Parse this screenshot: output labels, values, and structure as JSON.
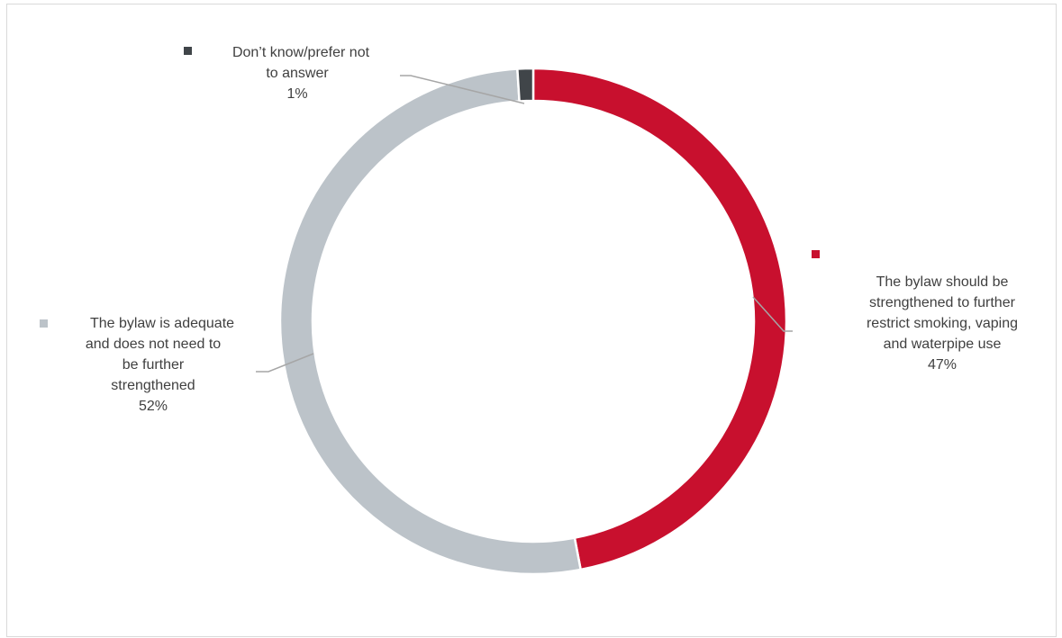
{
  "chart_data": {
    "type": "pie",
    "variant": "donut",
    "categories": [
      "The bylaw should be strengthened to further restrict smoking, vaping and waterpipe use",
      "The bylaw is adequate and does not need to be further strengthened",
      "Don’t know/prefer not to answer"
    ],
    "values": [
      47,
      52,
      1
    ],
    "value_labels": [
      "47%",
      "52%",
      "1%"
    ],
    "colors": [
      "#c8102e",
      "#bcc3c9",
      "#404549"
    ],
    "legend": "none",
    "labels": [
      {
        "lines": [
          "The bylaw should be",
          "strengthened to further",
          "restrict smoking, vaping",
          "and waterpipe use"
        ],
        "pct": "47%"
      },
      {
        "lines": [
          "The bylaw is adequate",
          "and does not need to",
          "be further",
          "strengthened"
        ],
        "pct": "52%"
      },
      {
        "lines": [
          "Don’t know/prefer not",
          "to answer"
        ],
        "pct": "1%"
      }
    ]
  }
}
